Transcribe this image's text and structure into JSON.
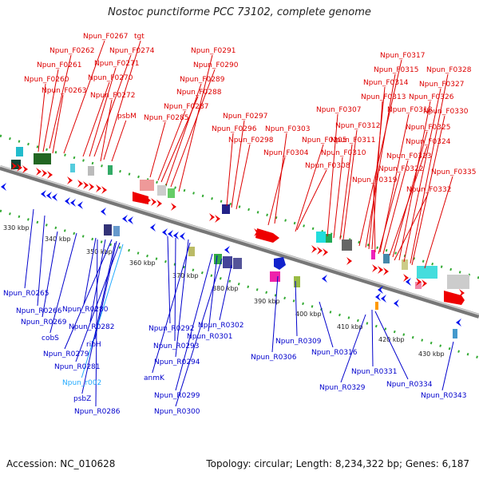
{
  "title": "Nostoc punctiforme PCC 73102, complete genome",
  "footer": {
    "accession": "Accession: NC_010628",
    "summary": "Topology: circular; Length: 8,234,322 bp; Genes: 6,187"
  },
  "colors": {
    "forward_label": "#dd0000",
    "reverse_label": "#0000cc",
    "rna_label": "#22aaff",
    "arrow_forward": "#ee0000",
    "arrow_reverse": "#0011ee",
    "tick": "#22aa22"
  },
  "scale": {
    "ticks": [
      {
        "label": "330 kbp",
        "kbp": 330
      },
      {
        "label": "340 kbp",
        "kbp": 340
      },
      {
        "label": "350 kbp",
        "kbp": 350
      },
      {
        "label": "360 kbp",
        "kbp": 360
      },
      {
        "label": "370 kbp",
        "kbp": 370
      },
      {
        "label": "380 kbp",
        "kbp": 380
      },
      {
        "label": "390 kbp",
        "kbp": 390
      },
      {
        "label": "400 kbp",
        "kbp": 400
      },
      {
        "label": "410 kbp",
        "kbp": 410
      },
      {
        "label": "420 kbp",
        "kbp": 420
      },
      {
        "label": "430 kbp",
        "kbp": 430
      }
    ]
  },
  "forward_genes": [
    "Npun_F0267",
    "tgt",
    "Npun_F0262",
    "Npun_F0274",
    "Npun_F0261",
    "Npun_F0271",
    "Npun_F0260",
    "Npun_F0270",
    "Npun_F0263",
    "Npun_F0272",
    "psbM",
    "Npun_F0291",
    "Npun_F0290",
    "Npun_F0289",
    "Npun_F0288",
    "Npun_F0287",
    "Npun_F0285",
    "Npun_F0297",
    "Npun_F0296",
    "Npun_F0298",
    "Npun_F0303",
    "Npun_F0305",
    "Npun_F0304",
    "Npun_F0308",
    "Npun_F0317",
    "Npun_F0315",
    "Npun_F0314",
    "Npun_F0313",
    "Npun_F0307",
    "Npun_F0312",
    "Npun_F0311",
    "Npun_F0310",
    "Npun_F0318",
    "Npun_F0328",
    "Npun_F0327",
    "Npun_F0326",
    "Npun_F0330",
    "Npun_F0325",
    "Npun_F0324",
    "Npun_F0323",
    "Npun_F0322",
    "Npun_F0319",
    "Npun_F0332",
    "Npun_F0335"
  ],
  "reverse_genes": [
    "Npun_R0265",
    "Npun_R0266",
    "Npun_R0269",
    "cobS",
    "Npun_R0280",
    "Npun_R0282",
    "Npun_R0279",
    "ribH",
    "Npun_R0281",
    "Npun_r002",
    "psbZ",
    "Npun_R0286",
    "Npun_R0292",
    "Npun_R0293",
    "Npun_R0294",
    "anmK",
    "Npun_R0299",
    "Npun_R0300",
    "Npun_R0302",
    "Npun_R0301",
    "Npun_R0306",
    "Npun_R0309",
    "Npun_R0316",
    "Npun_R0331",
    "Npun_R0329",
    "Npun_R0334",
    "Npun_R0343"
  ]
}
